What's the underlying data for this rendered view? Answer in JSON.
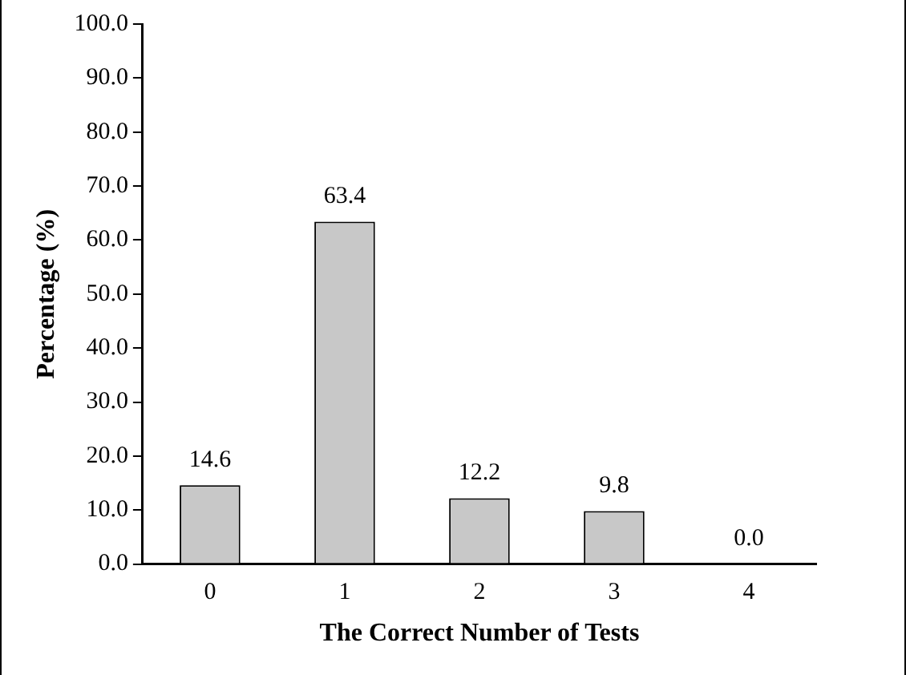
{
  "chart_data": {
    "type": "bar",
    "xlabel": "The Correct Number of Tests",
    "ylabel": "Percentage (%)",
    "categories": [
      "0",
      "1",
      "2",
      "3",
      "4"
    ],
    "values": [
      14.6,
      63.4,
      12.2,
      9.8,
      0.0
    ],
    "value_labels": [
      "14.6",
      "63.4",
      "12.2",
      "9.8",
      "0.0"
    ],
    "color": "#c8c8c8",
    "ylim": [
      0,
      100
    ],
    "yticks": [
      {
        "value": 0,
        "label": "0.0"
      },
      {
        "value": 10,
        "label": "10.0"
      },
      {
        "value": 20,
        "label": "20.0"
      },
      {
        "value": 30,
        "label": "30.0"
      },
      {
        "value": 40,
        "label": "40.0"
      },
      {
        "value": 50,
        "label": "50.0"
      },
      {
        "value": 60,
        "label": "60.0"
      },
      {
        "value": 70,
        "label": "70.0"
      },
      {
        "value": 80,
        "label": "80.0"
      },
      {
        "value": 90,
        "label": "90.0"
      },
      {
        "value": 100,
        "label": "100.0"
      }
    ],
    "grid": false,
    "legend": false
  }
}
